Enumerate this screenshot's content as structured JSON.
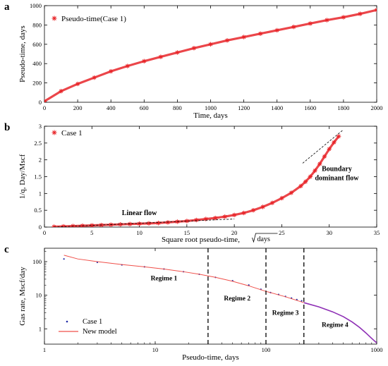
{
  "chart_data": [
    {
      "panel_label": "a",
      "type": "scatter",
      "xlabel": "Time, days",
      "ylabel": "Pseudo-time, days",
      "xlim": [
        0,
        2000
      ],
      "ylim": [
        0,
        1000
      ],
      "xticks": [
        0,
        200,
        400,
        600,
        800,
        1000,
        1200,
        1400,
        1600,
        1800,
        2000
      ],
      "yticks": [
        0,
        200,
        400,
        600,
        800,
        1000
      ],
      "grid": false,
      "legend_position": "top-left",
      "series": [
        {
          "name": "Pseudo-time(Case 1)",
          "color": "#e8262a",
          "marker": "asterisk",
          "x": [
            0,
            100,
            200,
            300,
            400,
            500,
            600,
            700,
            800,
            900,
            1000,
            1100,
            1200,
            1300,
            1400,
            1500,
            1600,
            1700,
            1800,
            1900,
            2000
          ],
          "y": [
            10,
            115,
            190,
            255,
            320,
            375,
            425,
            470,
            515,
            560,
            600,
            640,
            675,
            710,
            745,
            780,
            815,
            850,
            880,
            915,
            955
          ]
        }
      ]
    },
    {
      "panel_label": "b",
      "type": "scatter",
      "xlabel": "Square root pseudo-time, ",
      "xlabel_sqrt": "days",
      "ylabel": "1/q,  Day/Mscf",
      "xlim": [
        0,
        35
      ],
      "ylim": [
        0,
        3
      ],
      "xticks": [
        0,
        5,
        10,
        15,
        20,
        25,
        30,
        35
      ],
      "yticks": [
        0,
        0.5,
        1,
        1.5,
        2,
        2.5,
        3
      ],
      "grid": false,
      "legend_position": "top-left",
      "annotations": [
        "Linear flow",
        "Boundary\ndominant flow"
      ],
      "series": [
        {
          "name": "Case 1",
          "color": "#e8262a",
          "marker": "asterisk",
          "x": [
            1,
            2,
            3,
            4,
            5,
            6,
            7,
            8,
            9,
            10,
            11,
            12,
            13,
            14,
            15,
            16,
            17,
            18,
            19,
            20,
            21,
            22,
            23,
            24,
            25,
            26,
            27,
            27.5,
            28,
            28.5,
            29,
            29.5,
            30,
            30.5,
            31
          ],
          "y": [
            0.01,
            0.02,
            0.03,
            0.04,
            0.05,
            0.06,
            0.07,
            0.08,
            0.09,
            0.1,
            0.11,
            0.12,
            0.14,
            0.16,
            0.18,
            0.21,
            0.24,
            0.27,
            0.31,
            0.36,
            0.42,
            0.5,
            0.6,
            0.72,
            0.86,
            1.02,
            1.22,
            1.35,
            1.5,
            1.68,
            1.88,
            2.1,
            2.32,
            2.52,
            2.7
          ]
        },
        {
          "name": "linear-fit",
          "color": "#000000",
          "style": "dashed",
          "x": [
            1,
            20
          ],
          "y": [
            0.0,
            0.24
          ]
        },
        {
          "name": "boundary-fit",
          "color": "#000000",
          "style": "dashed",
          "x": [
            27.2,
            31.5
          ],
          "y": [
            1.9,
            2.9
          ]
        }
      ]
    },
    {
      "panel_label": "c",
      "type": "line",
      "xlabel": "Pseudo-time, days",
      "ylabel": "Gas rate, Mscf/day",
      "xscale": "log",
      "yscale": "log",
      "xlim": [
        1,
        1000
      ],
      "ylim": [
        0.35,
        250
      ],
      "xticks": [
        1,
        10,
        100,
        1000
      ],
      "yticks": [
        1,
        10,
        100
      ],
      "grid": false,
      "legend_position": "bottom-left",
      "regime_boundaries": [
        30,
        100,
        220
      ],
      "regimes": [
        "Regime 1",
        "Regime 2",
        "Regime 3",
        "Regime 4"
      ],
      "series": [
        {
          "name": "Case 1",
          "color": "#1f2aa6",
          "marker": "dot",
          "x": [
            1.5,
            3,
            5,
            8,
            12,
            18,
            25,
            35,
            50,
            70,
            90,
            110,
            130,
            150,
            170,
            190,
            210
          ],
          "y": [
            120,
            95,
            80,
            70,
            60,
            50,
            42,
            34,
            27,
            20,
            15,
            12,
            10.5,
            9.2,
            8.2,
            7.4,
            6.8
          ]
        },
        {
          "name": "New model",
          "color": "#f0504a",
          "x": [
            1.5,
            2,
            3,
            5,
            8,
            12,
            18,
            25,
            35,
            50,
            70,
            100,
            150,
            220
          ],
          "y": [
            155,
            120,
            100,
            82,
            70,
            60,
            50,
            42,
            34,
            26,
            19,
            13,
            9,
            6
          ]
        },
        {
          "name": "regime-4-fit",
          "color": "#8e2fb5",
          "x": [
            220,
            300,
            400,
            500,
            600,
            700,
            800,
            900,
            1000
          ],
          "y": [
            6,
            4.5,
            3.2,
            2.3,
            1.6,
            1.1,
            0.75,
            0.52,
            0.38
          ]
        }
      ]
    }
  ]
}
